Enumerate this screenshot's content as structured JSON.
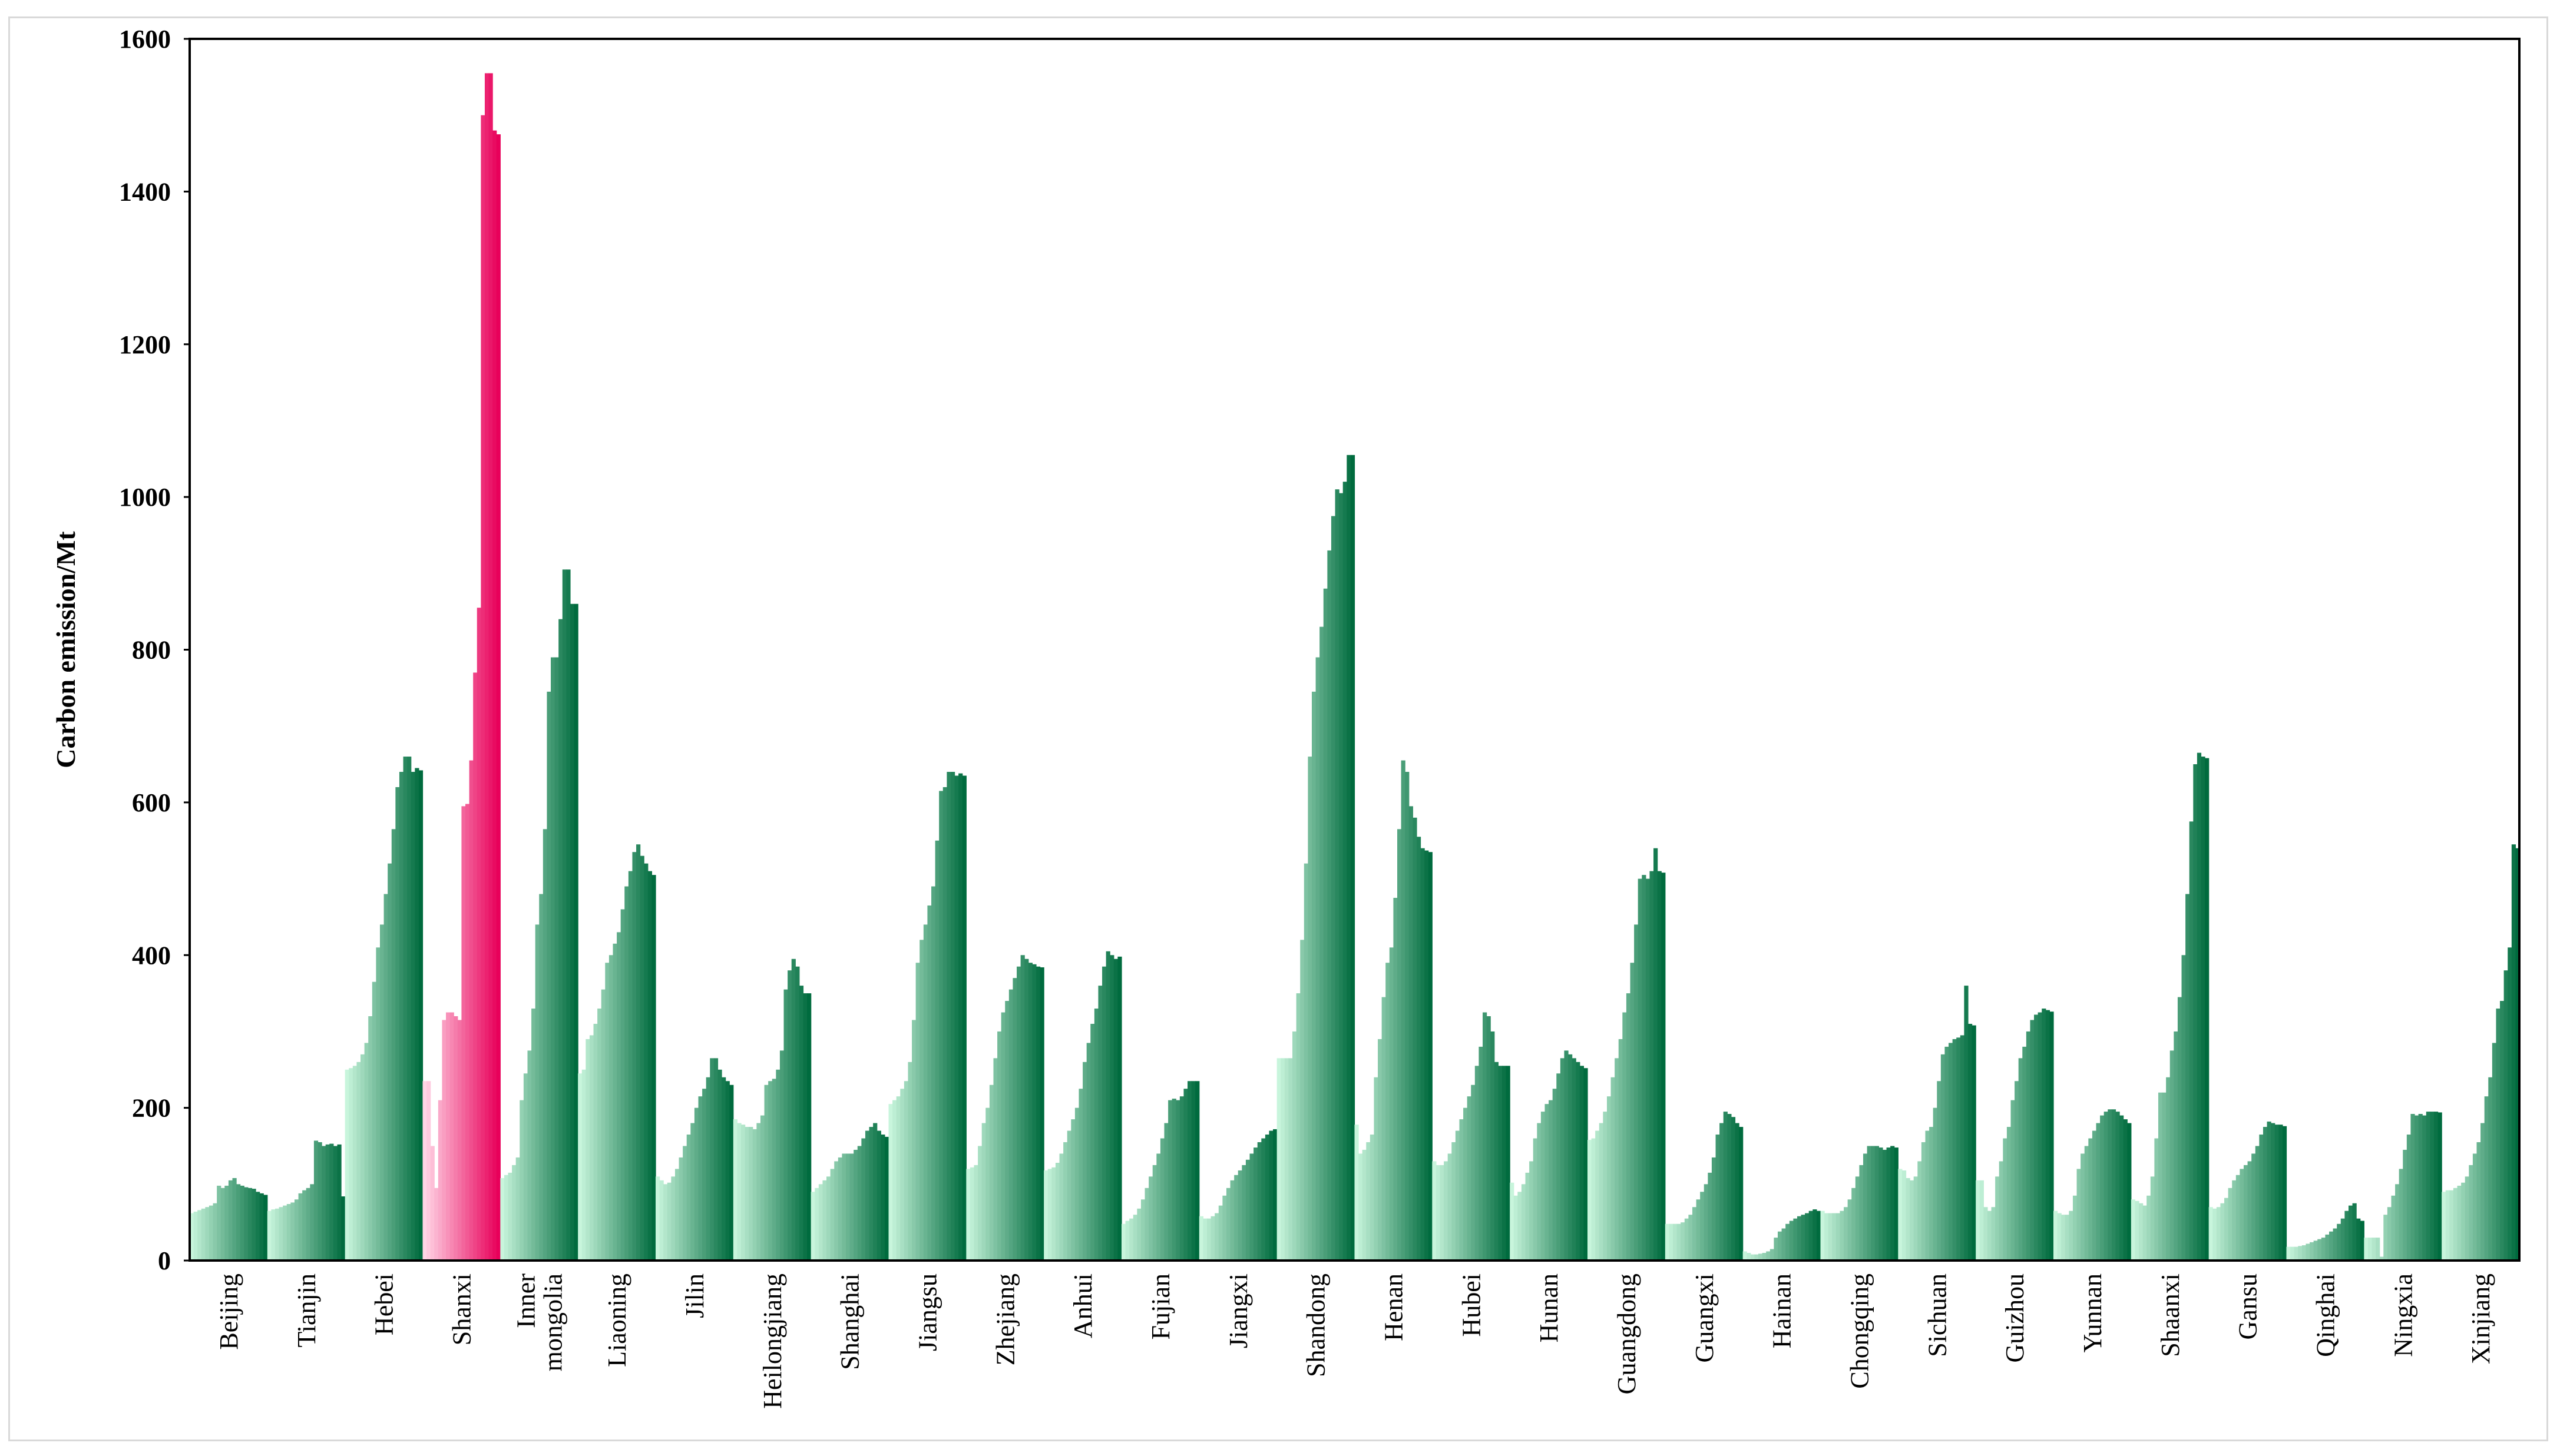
{
  "chart_data": {
    "type": "bar",
    "title": "",
    "xlabel": "",
    "ylabel": "Carbon emission/Mt",
    "ylim": [
      0,
      1600
    ],
    "yticks": [
      0,
      200,
      400,
      600,
      800,
      1000,
      1200,
      1400,
      1600
    ],
    "grid": false,
    "legend": "none",
    "bars_per_province": 20,
    "colors": {
      "green_start": "#c8f5dc",
      "green_end": "#006b3e",
      "highlight_start": "#ffd6e6",
      "highlight_end": "#e8005a"
    },
    "highlight": "Shanxi",
    "provinces": [
      {
        "name": "Beijing",
        "label": [
          "Beijing"
        ],
        "values": [
          62,
          64,
          66,
          68,
          70,
          72,
          75,
          98,
          95,
          98,
          105,
          108,
          100,
          98,
          96,
          95,
          94,
          90,
          88,
          86
        ]
      },
      {
        "name": "Tianjin",
        "label": [
          "Tianjin"
        ],
        "values": [
          65,
          67,
          68,
          70,
          72,
          74,
          76,
          80,
          88,
          92,
          95,
          100,
          157,
          155,
          150,
          152,
          153,
          150,
          152,
          84
        ]
      },
      {
        "name": "Hebei",
        "label": [
          "Hebei"
        ],
        "values": [
          250,
          252,
          255,
          260,
          270,
          285,
          320,
          365,
          410,
          440,
          480,
          520,
          565,
          620,
          640,
          660,
          660,
          640,
          645,
          642
        ]
      },
      {
        "name": "Shanxi",
        "label": [
          "Shanxi"
        ],
        "values": [
          235,
          235,
          150,
          95,
          210,
          315,
          325,
          325,
          320,
          315,
          595,
          598,
          655,
          770,
          855,
          1500,
          1555,
          1555,
          1480,
          1475
        ]
      },
      {
        "name": "Inner mongolia",
        "label": [
          "Inner",
          "mongolia"
        ],
        "values": [
          108,
          112,
          115,
          125,
          135,
          210,
          245,
          275,
          330,
          440,
          480,
          565,
          745,
          790,
          790,
          840,
          905,
          905,
          860,
          860
        ]
      },
      {
        "name": "Liaoning",
        "label": [
          "Liaoning"
        ],
        "values": [
          245,
          250,
          290,
          295,
          310,
          330,
          355,
          390,
          400,
          415,
          430,
          460,
          490,
          510,
          535,
          545,
          530,
          520,
          510,
          505
        ]
      },
      {
        "name": "Jilin",
        "label": [
          "Jilin"
        ],
        "values": [
          110,
          105,
          100,
          102,
          110,
          120,
          135,
          150,
          165,
          180,
          200,
          215,
          225,
          240,
          265,
          265,
          250,
          240,
          235,
          230
        ]
      },
      {
        "name": "Heilongjiang",
        "label": [
          "Heilongjiang"
        ],
        "values": [
          185,
          180,
          178,
          175,
          175,
          172,
          180,
          190,
          230,
          235,
          238,
          250,
          275,
          355,
          380,
          395,
          385,
          360,
          350,
          350
        ]
      },
      {
        "name": "Shanghai",
        "label": [
          "Shanghai"
        ],
        "values": [
          90,
          95,
          100,
          105,
          110,
          120,
          130,
          135,
          140,
          140,
          140,
          145,
          150,
          160,
          170,
          175,
          180,
          170,
          165,
          162
        ]
      },
      {
        "name": "Jiangsu",
        "label": [
          "Jiangsu"
        ],
        "values": [
          205,
          210,
          215,
          225,
          235,
          260,
          315,
          390,
          420,
          440,
          465,
          490,
          550,
          615,
          620,
          640,
          640,
          635,
          638,
          635
        ]
      },
      {
        "name": "Zhejiang",
        "label": [
          "Zhejiang"
        ],
        "values": [
          120,
          122,
          125,
          150,
          180,
          200,
          230,
          265,
          300,
          325,
          340,
          355,
          370,
          385,
          400,
          395,
          390,
          388,
          385,
          384
        ]
      },
      {
        "name": "Anhui",
        "label": [
          "Anhui"
        ],
        "values": [
          118,
          120,
          122,
          128,
          140,
          155,
          170,
          185,
          200,
          225,
          260,
          285,
          310,
          330,
          360,
          385,
          405,
          400,
          395,
          398
        ]
      },
      {
        "name": "Fujian",
        "label": [
          "Fujian"
        ],
        "values": [
          48,
          52,
          55,
          60,
          68,
          80,
          95,
          110,
          125,
          140,
          160,
          180,
          210,
          212,
          210,
          215,
          225,
          235,
          235,
          235
        ]
      },
      {
        "name": "Jiangxi",
        "label": [
          "Jiangxi"
        ],
        "values": [
          58,
          55,
          55,
          58,
          62,
          72,
          85,
          95,
          105,
          112,
          118,
          125,
          132,
          140,
          148,
          155,
          160,
          165,
          170,
          172
        ]
      },
      {
        "name": "Shandong",
        "label": [
          "Shandong"
        ],
        "values": [
          265,
          265,
          265,
          265,
          300,
          350,
          420,
          520,
          660,
          745,
          790,
          830,
          880,
          930,
          975,
          1010,
          1005,
          1020,
          1055,
          1055
        ]
      },
      {
        "name": "Henan",
        "label": [
          "Henan"
        ],
        "values": [
          178,
          140,
          145,
          155,
          165,
          240,
          290,
          345,
          390,
          410,
          475,
          565,
          655,
          640,
          595,
          580,
          555,
          540,
          537,
          535
        ]
      },
      {
        "name": "Hubei",
        "label": [
          "Hubei"
        ],
        "values": [
          130,
          125,
          125,
          130,
          140,
          155,
          170,
          185,
          200,
          215,
          230,
          255,
          280,
          325,
          320,
          300,
          260,
          255,
          255,
          255
        ]
      },
      {
        "name": "Hunan",
        "label": [
          "Hunan"
        ],
        "values": [
          102,
          85,
          90,
          100,
          115,
          130,
          160,
          180,
          195,
          205,
          210,
          225,
          245,
          265,
          275,
          270,
          265,
          260,
          255,
          252
        ]
      },
      {
        "name": "Guangdong",
        "label": [
          "Guangdong"
        ],
        "values": [
          158,
          160,
          170,
          180,
          195,
          215,
          240,
          265,
          290,
          325,
          350,
          390,
          440,
          500,
          505,
          500,
          510,
          540,
          510,
          508
        ]
      },
      {
        "name": "Guangxi",
        "label": [
          "Guangxi"
        ],
        "values": [
          48,
          48,
          48,
          48,
          50,
          55,
          60,
          70,
          80,
          90,
          100,
          115,
          135,
          165,
          180,
          195,
          192,
          188,
          180,
          175
        ]
      },
      {
        "name": "Hainan",
        "label": [
          "Hainan"
        ],
        "values": [
          12,
          10,
          8,
          8,
          9,
          10,
          12,
          15,
          30,
          38,
          42,
          48,
          52,
          55,
          58,
          60,
          62,
          65,
          67,
          65
        ]
      },
      {
        "name": "Chongqing",
        "label": [
          "Chongqing"
        ],
        "values": [
          65,
          62,
          62,
          62,
          62,
          65,
          70,
          80,
          95,
          110,
          125,
          140,
          150,
          150,
          150,
          148,
          145,
          148,
          150,
          148
        ]
      },
      {
        "name": "Sichuan",
        "label": [
          "Sichuan"
        ],
        "values": [
          120,
          118,
          108,
          105,
          110,
          130,
          155,
          170,
          175,
          200,
          235,
          270,
          280,
          285,
          290,
          292,
          295,
          360,
          310,
          308
        ]
      },
      {
        "name": "Guizhou",
        "label": [
          "Guizhou"
        ],
        "values": [
          105,
          105,
          70,
          65,
          70,
          110,
          130,
          160,
          175,
          210,
          235,
          265,
          280,
          300,
          315,
          322,
          325,
          330,
          328,
          326
        ]
      },
      {
        "name": "Yunnan",
        "label": [
          "Yunnan"
        ],
        "values": [
          65,
          62,
          60,
          60,
          65,
          85,
          120,
          140,
          150,
          160,
          170,
          180,
          190,
          195,
          198,
          198,
          195,
          190,
          185,
          180
        ]
      },
      {
        "name": "Shaanxi",
        "label": [
          "Shaanxi"
        ],
        "values": [
          80,
          78,
          75,
          72,
          85,
          110,
          160,
          220,
          220,
          240,
          275,
          300,
          345,
          400,
          480,
          575,
          650,
          665,
          660,
          658
        ]
      },
      {
        "name": "Gansu",
        "label": [
          "Gansu"
        ],
        "values": [
          70,
          68,
          70,
          75,
          82,
          95,
          105,
          112,
          120,
          125,
          130,
          140,
          150,
          165,
          175,
          182,
          180,
          178,
          178,
          176
        ]
      },
      {
        "name": "Qinghai",
        "label": [
          "Qinghai"
        ],
        "values": [
          18,
          18,
          18,
          19,
          20,
          22,
          24,
          26,
          28,
          30,
          34,
          38,
          42,
          48,
          55,
          65,
          72,
          75,
          55,
          52
        ]
      },
      {
        "name": "Ningxia",
        "label": [
          "Ningxia"
        ],
        "values": [
          30,
          30,
          30,
          30,
          5,
          60,
          70,
          85,
          100,
          120,
          145,
          165,
          192,
          190,
          192,
          190,
          195,
          195,
          195,
          194
        ]
      },
      {
        "name": "Xinjiang",
        "label": [
          "Xinjiang"
        ],
        "values": [
          90,
          92,
          92,
          95,
          98,
          102,
          110,
          125,
          140,
          155,
          180,
          215,
          240,
          285,
          330,
          340,
          380,
          410,
          545,
          540
        ]
      }
    ]
  }
}
